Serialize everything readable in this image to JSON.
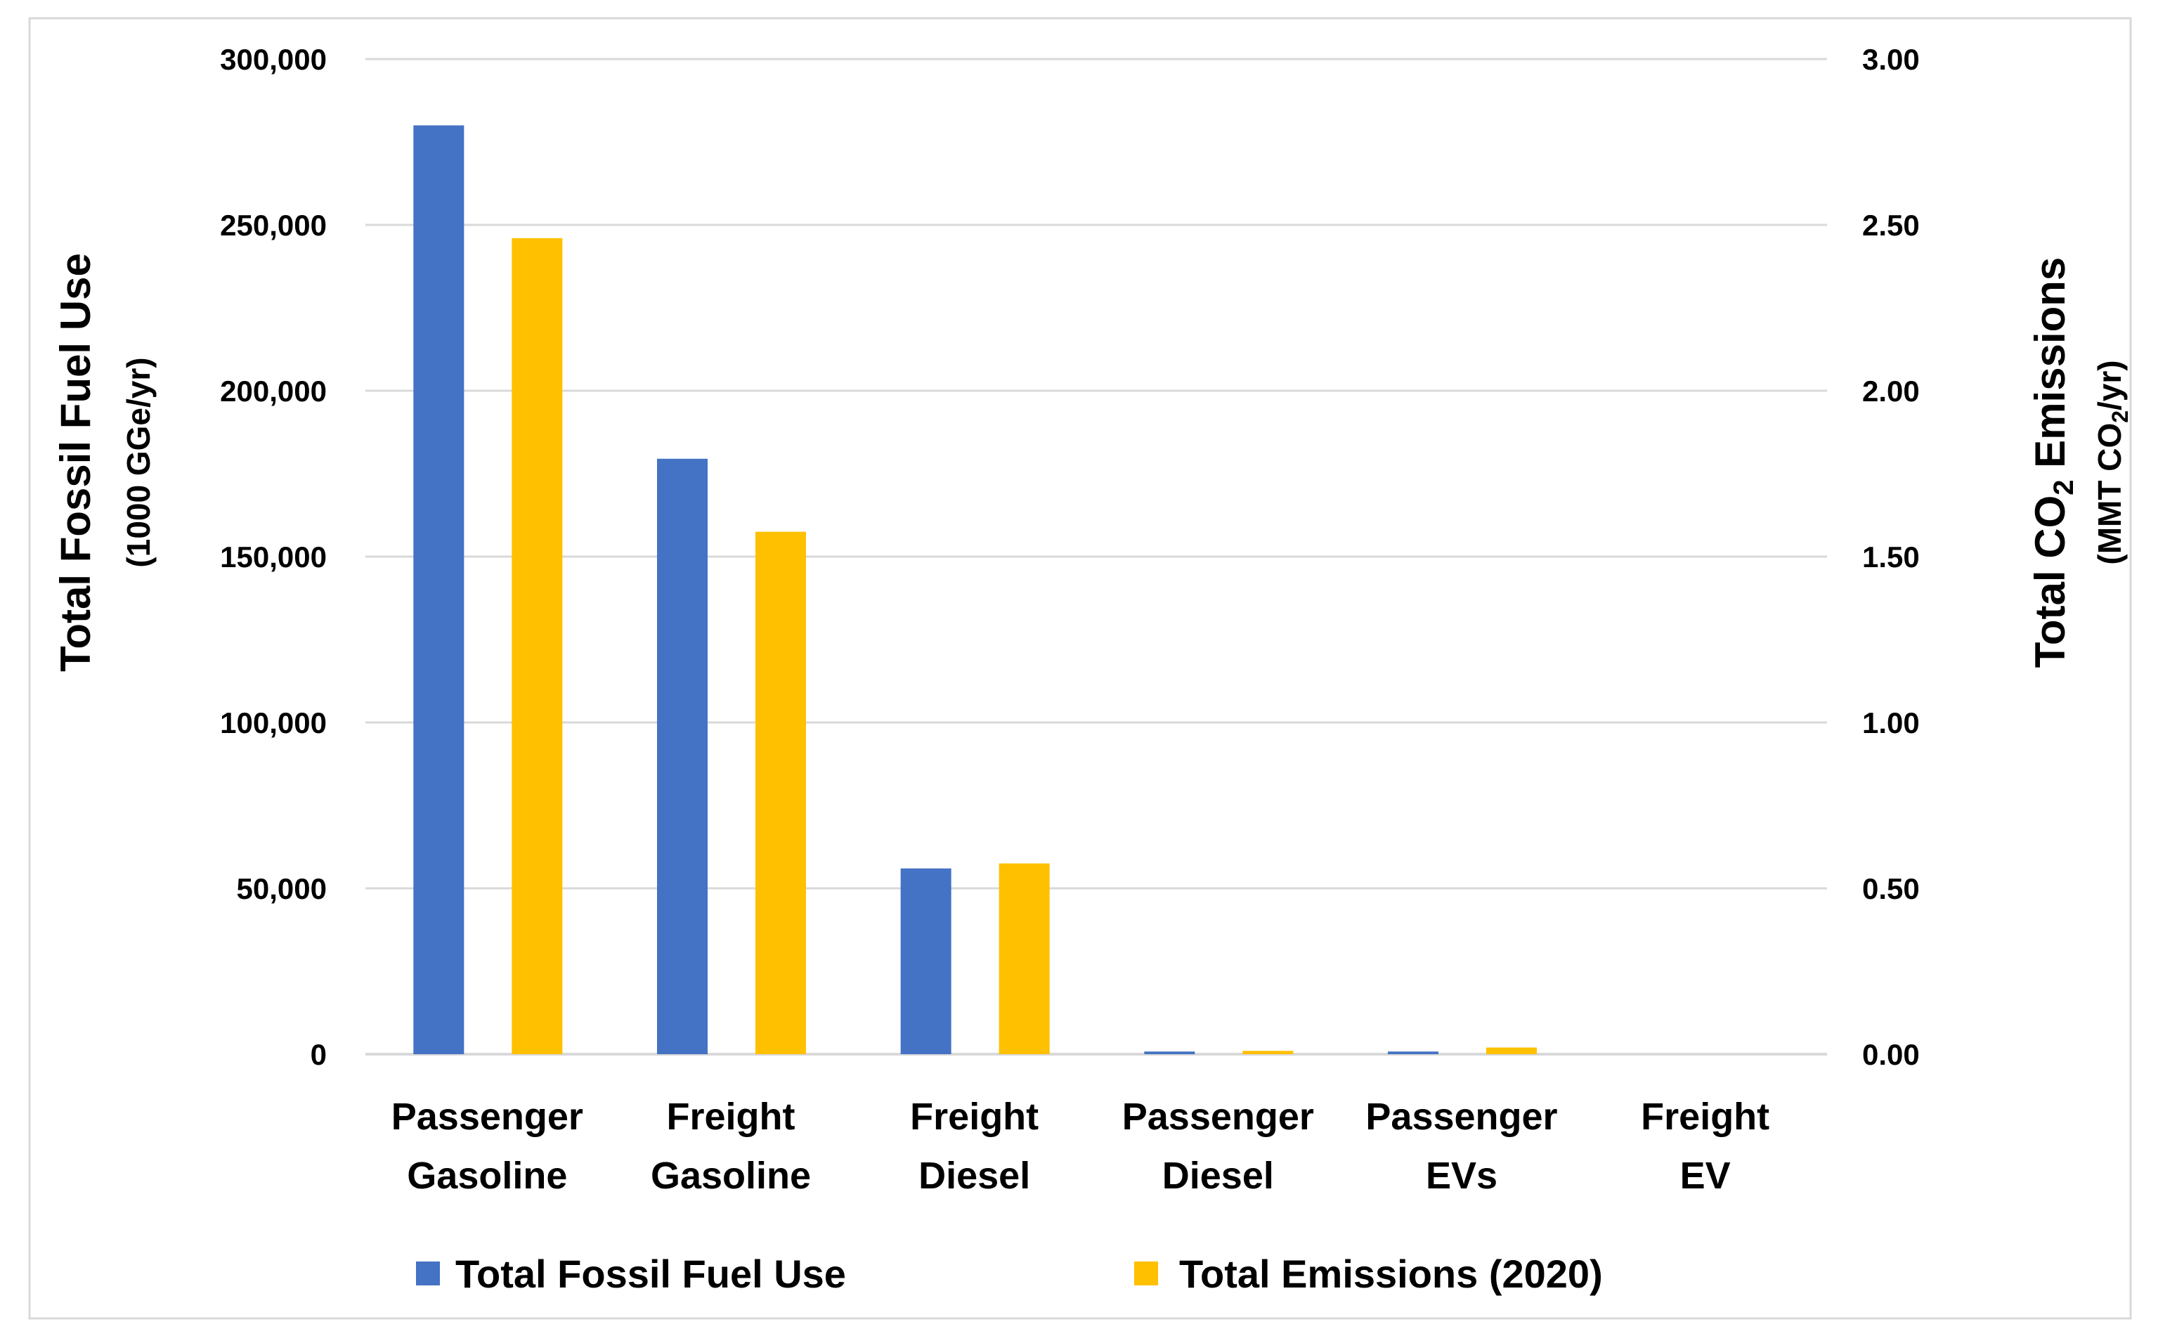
{
  "chart_data": {
    "type": "bar",
    "categories": [
      [
        "Passenger",
        "Gasoline"
      ],
      [
        "Freight",
        "Gasoline"
      ],
      [
        "Freight",
        "Diesel"
      ],
      [
        "Passenger",
        "Diesel"
      ],
      [
        "Passenger",
        "EVs"
      ],
      [
        "Freight",
        "EV"
      ]
    ],
    "series": [
      {
        "name": "Total Fossil Fuel Use",
        "axis": "left",
        "color": "#4472C4",
        "values": [
          280000,
          179500,
          56000,
          800,
          800,
          0
        ]
      },
      {
        "name": "Total Emissions (2020)",
        "axis": "right",
        "color": "#FFC000",
        "values": [
          2.46,
          1.575,
          0.575,
          0.01,
          0.02,
          0
        ]
      }
    ],
    "y_left": {
      "title": "Total Fossil Fuel Use",
      "subtitle": "(1000 GGe/yr)",
      "ylim": [
        0,
        300000
      ],
      "ticks": [
        "0",
        "50,000",
        "100,000",
        "150,000",
        "200,000",
        "250,000",
        "300,000"
      ]
    },
    "y_right": {
      "title_pre": "Total CO",
      "title_sub": "2",
      "title_post": " Emissions",
      "subtitle_pre": "(MMT CO",
      "subtitle_sub": "2",
      "subtitle_post": "/yr)",
      "ylim": [
        0,
        3
      ],
      "ticks": [
        "0.00",
        "0.50",
        "1.00",
        "1.50",
        "2.00",
        "2.50",
        "3.00"
      ]
    },
    "grid": true,
    "legend_position": "bottom"
  }
}
